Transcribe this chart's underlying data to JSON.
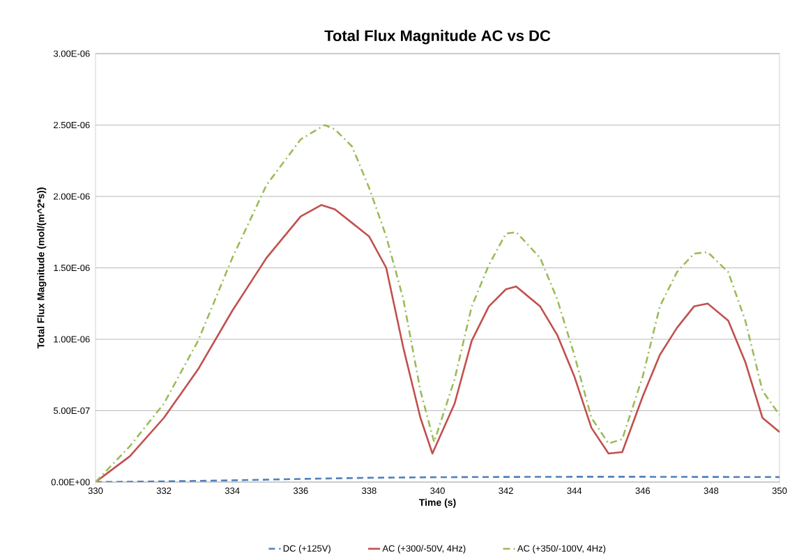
{
  "chart_data": {
    "type": "line",
    "title": "Total Flux Magnitude AC vs DC",
    "xlabel": "Time (s)",
    "ylabel": "Total Flux Magnitude (mol/(m^2*s))",
    "xlim": [
      330,
      350
    ],
    "xticks": [
      330,
      332,
      334,
      336,
      338,
      340,
      342,
      344,
      346,
      348,
      350
    ],
    "ylim": [
      0,
      3e-06
    ],
    "yticks": [
      {
        "value": 0,
        "label": "0.00E+00"
      },
      {
        "value": 5e-07,
        "label": "5.00E-07"
      },
      {
        "value": 1e-06,
        "label": "1.00E-06"
      },
      {
        "value": 1.5e-06,
        "label": "1.50E-06"
      },
      {
        "value": 2e-06,
        "label": "2.00E-06"
      },
      {
        "value": 2.5e-06,
        "label": "2.50E-06"
      },
      {
        "value": 3e-06,
        "label": "3.00E-06"
      }
    ],
    "grid": "y",
    "legend": "bottom",
    "marker": "none",
    "series": [
      {
        "name": "DC (+125V)",
        "color": "#4f81bd",
        "line_style": "dashed",
        "x": [
          330,
          332,
          334,
          336,
          338,
          340,
          342,
          344,
          346,
          348,
          350
        ],
        "values": [
          0,
          5e-09,
          1.2e-08,
          2.2e-08,
          3e-08,
          3.4e-08,
          3.6e-08,
          3.7e-08,
          3.7e-08,
          3.6e-08,
          3.5e-08
        ]
      },
      {
        "name": "AC (+300/-50V, 4Hz)",
        "color": "#c0504d",
        "line_style": "solid",
        "x": [
          330,
          331,
          332,
          333,
          334,
          335,
          336,
          336.6,
          337,
          338,
          338.5,
          339,
          339.5,
          339.85,
          340.5,
          341,
          341.5,
          342,
          342.3,
          343,
          343.5,
          344,
          344.5,
          345,
          345.4,
          346,
          346.5,
          347,
          347.5,
          347.9,
          348.5,
          349,
          349.5,
          350
        ],
        "values": [
          0,
          1.8e-07,
          4.5e-07,
          7.9e-07,
          1.2e-06,
          1.57e-06,
          1.86e-06,
          1.94e-06,
          1.91e-06,
          1.72e-06,
          1.5e-06,
          9.4e-07,
          4.5e-07,
          2e-07,
          5.5e-07,
          9.9e-07,
          1.23e-06,
          1.35e-06,
          1.37e-06,
          1.23e-06,
          1.03e-06,
          7.4e-07,
          3.8e-07,
          2e-07,
          2.1e-07,
          6e-07,
          8.9e-07,
          1.08e-06,
          1.23e-06,
          1.25e-06,
          1.13e-06,
          8.4e-07,
          4.5e-07,
          3.5e-07
        ]
      },
      {
        "name": "AC (+350/-100V, 4Hz)",
        "color": "#9bbb59",
        "line_style": "dashdot",
        "x": [
          330,
          331,
          332,
          333,
          334,
          335,
          336,
          336.7,
          337,
          337.5,
          338,
          338.5,
          339,
          339.5,
          339.9,
          340.5,
          341,
          341.5,
          342,
          342.3,
          343,
          343.5,
          344,
          344.5,
          345,
          345.4,
          346,
          346.5,
          347,
          347.5,
          347.9,
          348.5,
          349,
          349.5,
          350
        ],
        "values": [
          0,
          2.5e-07,
          5.5e-07,
          9.9e-07,
          1.57e-06,
          2.08e-06,
          2.4e-06,
          2.5e-06,
          2.47e-06,
          2.35e-06,
          2.06e-06,
          1.72e-06,
          1.28e-06,
          6.4e-07,
          2.8e-07,
          7.2e-07,
          1.23e-06,
          1.52e-06,
          1.74e-06,
          1.75e-06,
          1.57e-06,
          1.28e-06,
          8.9e-07,
          4.5e-07,
          2.7e-07,
          3e-07,
          7.4e-07,
          1.23e-06,
          1.47e-06,
          1.6e-06,
          1.61e-06,
          1.47e-06,
          1.13e-06,
          6.4e-07,
          4.7e-07
        ]
      }
    ]
  }
}
